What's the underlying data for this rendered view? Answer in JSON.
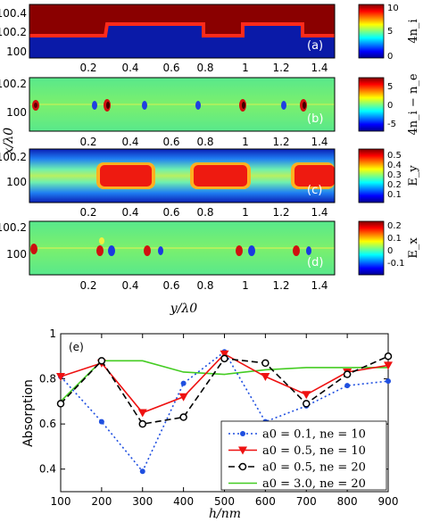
{
  "chart_data": [
    {
      "type": "heatmap",
      "panel_label": "(a)",
      "colorbar_label": "4n_i",
      "colorbar_ticks": [
        "10",
        "5",
        "0"
      ],
      "colorbar_range": [
        0,
        10
      ],
      "y_tick_labels": [
        "100.4",
        "100.2",
        "100"
      ],
      "x_tick_labels": [
        "0.2",
        "0.4",
        "0.6",
        "0.8",
        "1",
        "1.2",
        "1.4"
      ]
    },
    {
      "type": "heatmap",
      "panel_label": "(b)",
      "colorbar_label": "4n_i − n_e",
      "colorbar_ticks": [
        "5",
        "0",
        "-5"
      ],
      "colorbar_range": [
        -7,
        7
      ],
      "y_tick_labels": [
        "100.2",
        "100"
      ],
      "x_tick_labels": [
        "0.2",
        "0.4",
        "0.6",
        "0.8",
        "1",
        "1.2",
        "1.4"
      ]
    },
    {
      "type": "heatmap",
      "panel_label": "(c)",
      "colorbar_label": "E_y",
      "colorbar_ticks": [
        "0.5",
        "0.4",
        "0.3",
        "0.2",
        "0.1"
      ],
      "colorbar_range": [
        0,
        0.58
      ],
      "y_tick_labels": [
        "100.2",
        "100"
      ],
      "x_tick_labels": [
        "0.2",
        "0.4",
        "0.6",
        "0.8",
        "1",
        "1.2",
        "1.4"
      ]
    },
    {
      "type": "heatmap",
      "panel_label": "(d)",
      "colorbar_label": "E_x",
      "colorbar_ticks": [
        "0.2",
        "0.1",
        "0",
        "-0.1"
      ],
      "colorbar_range": [
        -0.2,
        0.22
      ],
      "y_tick_labels": [
        "100.2",
        "100"
      ],
      "x_tick_labels": [
        "0.2",
        "0.4",
        "0.6",
        "0.8",
        "1",
        "1.2",
        "1.4"
      ],
      "xlabel": "y/λ0"
    },
    {
      "type": "line",
      "panel_label": "(e)",
      "xlabel": "h/nm",
      "ylabel": "Absorption",
      "x": [
        100,
        200,
        300,
        400,
        500,
        600,
        700,
        800,
        900
      ],
      "xlim": [
        100,
        900
      ],
      "ylim": [
        0.3,
        1.0
      ],
      "x_tick_labels": [
        "100",
        "200",
        "300",
        "400",
        "500",
        "600",
        "700",
        "800",
        "900"
      ],
      "y_ticks": [
        0.4,
        0.6,
        0.8,
        1.0
      ],
      "y_tick_labels": [
        "0.4",
        "0.6",
        "0.8",
        "1"
      ],
      "legend_position": "bottom-right",
      "series": [
        {
          "name": "a0 = 0.1, ne = 10",
          "color": "#1f4fe0",
          "dash": "dotted",
          "marker": "dot",
          "values": [
            0.81,
            0.61,
            0.39,
            0.78,
            0.92,
            0.61,
            0.68,
            0.77,
            0.79
          ]
        },
        {
          "name": "a0 = 0.5, ne = 10",
          "color": "#ee1111",
          "dash": "solid",
          "marker": "triangle-down",
          "values": [
            0.81,
            0.87,
            0.65,
            0.72,
            0.91,
            0.81,
            0.73,
            0.83,
            0.86
          ]
        },
        {
          "name": "a0 = 0.5, ne = 20",
          "color": "#000000",
          "dash": "dashed",
          "marker": "circle-open",
          "values": [
            0.69,
            0.88,
            0.6,
            0.63,
            0.89,
            0.87,
            0.69,
            0.82,
            0.9
          ]
        },
        {
          "name": "a0 = 3.0, ne = 20",
          "color": "#44cc22",
          "dash": "solid",
          "marker": "none",
          "values": [
            0.7,
            0.88,
            0.88,
            0.83,
            0.82,
            0.84,
            0.85,
            0.85,
            0.85
          ]
        }
      ]
    }
  ]
}
